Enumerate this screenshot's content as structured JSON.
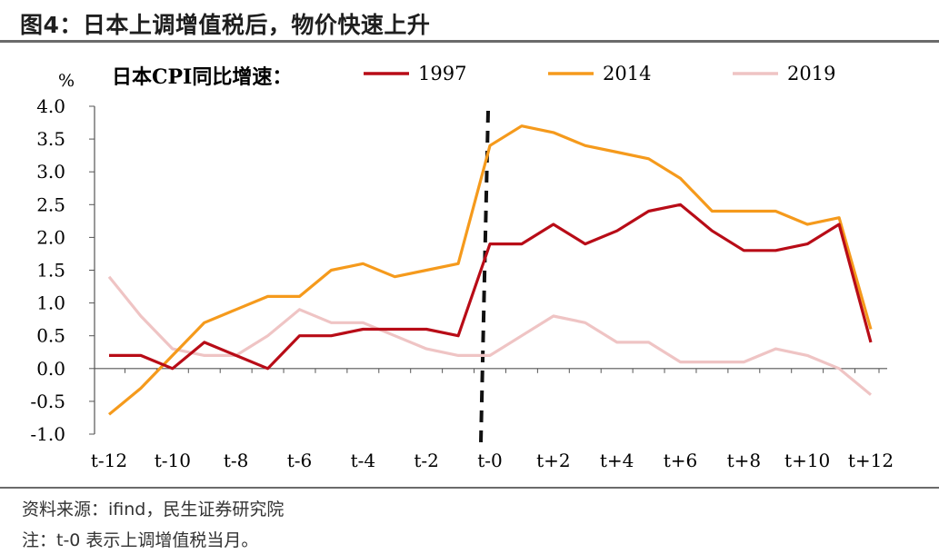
{
  "figure_title": "图4：日本上调增值税后，物价快速上升",
  "source_note": "资料来源：ifind，民生证券研究院",
  "footnote": "注：t-0 表示上调增值税当月。",
  "chart_data": {
    "type": "line",
    "unit_label": "%",
    "legend_title": "日本CPI同比增速：",
    "legend_position": "top",
    "ylim": [
      -1.0,
      4.0
    ],
    "yticks": [
      "4.0",
      "3.5",
      "3.0",
      "2.5",
      "2.0",
      "1.5",
      "1.0",
      "0.5",
      "0.0",
      "-0.5",
      "-1.0"
    ],
    "x": [
      "t-12",
      "t-11",
      "t-10",
      "t-9",
      "t-8",
      "t-7",
      "t-6",
      "t-5",
      "t-4",
      "t-3",
      "t-2",
      "t-1",
      "t-0",
      "t+1",
      "t+2",
      "t+3",
      "t+4",
      "t+5",
      "t+6",
      "t+7",
      "t+8",
      "t+9",
      "t+10",
      "t+11",
      "t+12"
    ],
    "xtick_labels": [
      "t-12",
      "t-10",
      "t-8",
      "t-6",
      "t-4",
      "t-2",
      "t-0",
      "t+2",
      "t+4",
      "t+6",
      "t+8",
      "t+10",
      "t+12"
    ],
    "marker_line_at": "t-0",
    "grid": false,
    "series": [
      {
        "name": "1997",
        "color": "#b80c17",
        "values": [
          0.2,
          0.2,
          0.0,
          0.4,
          0.2,
          0.0,
          0.5,
          0.5,
          0.6,
          0.6,
          0.6,
          0.5,
          1.9,
          1.9,
          2.2,
          1.9,
          2.1,
          2.4,
          2.5,
          2.1,
          1.8,
          1.8,
          1.9,
          2.2,
          0.4
        ]
      },
      {
        "name": "2014",
        "color": "#f59a1c",
        "values": [
          -0.7,
          -0.3,
          0.2,
          0.7,
          0.9,
          1.1,
          1.1,
          1.5,
          1.6,
          1.4,
          1.5,
          1.6,
          3.4,
          3.7,
          3.6,
          3.4,
          3.3,
          3.2,
          2.9,
          2.4,
          2.4,
          2.4,
          2.2,
          2.3,
          0.6
        ]
      },
      {
        "name": "2019",
        "color": "#efc4c4",
        "values": [
          1.4,
          0.8,
          0.3,
          0.2,
          0.2,
          0.5,
          0.9,
          0.7,
          0.7,
          0.5,
          0.3,
          0.2,
          0.2,
          0.5,
          0.8,
          0.7,
          0.4,
          0.4,
          0.1,
          0.1,
          0.1,
          0.3,
          0.2,
          0.0,
          -0.4
        ]
      }
    ]
  }
}
